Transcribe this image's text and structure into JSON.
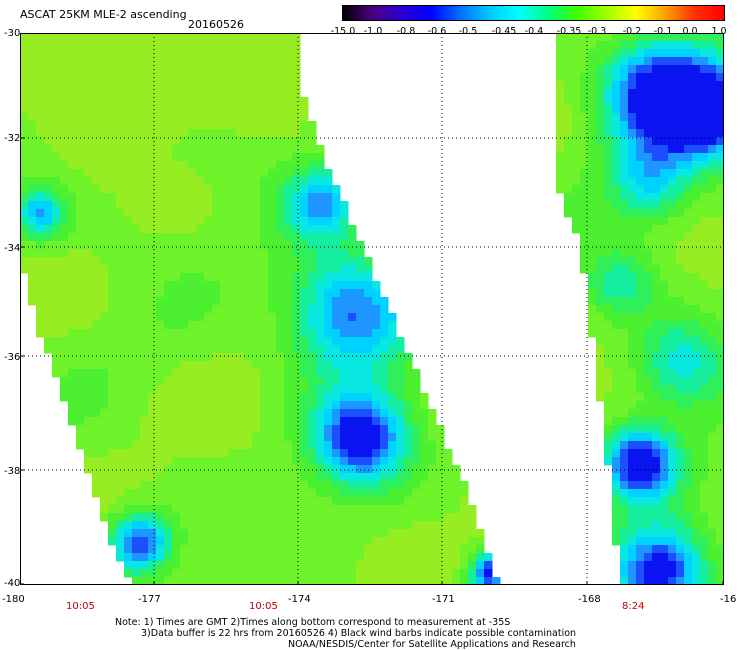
{
  "header": {
    "title": "ASCAT 25KM MLE-2 ascending",
    "date": "20160526"
  },
  "colorbar": {
    "labels": [
      "-15.0",
      "-1.0",
      "-0.8",
      "-0.6",
      "-0.5",
      "-0.45",
      "-0.4",
      "-0.35",
      "-0.3",
      "-0.2",
      "-0.1",
      "0.0",
      "1.0"
    ],
    "colors": [
      "#000000",
      "#4b0082",
      "#2a00d0",
      "#0000ff",
      "#0070ff",
      "#00c8ff",
      "#00ffff",
      "#00ff80",
      "#40ff00",
      "#a0ff00",
      "#ffff00",
      "#ffa000",
      "#ff3000",
      "#ff0000"
    ]
  },
  "axes": {
    "y_labels": [
      "-30",
      "-32",
      "-34",
      "-36",
      "-38",
      "-40"
    ],
    "x_labels": [
      "-180",
      "-177",
      "-174",
      "-171",
      "-168",
      "-16"
    ]
  },
  "times": [
    "10:05",
    "10:05",
    "8:24"
  ],
  "notes": {
    "line1": "Note: 1) Times are GMT 2)Times along bottom correspond to measurement at -35S",
    "line2": "3)Data buffer is 22 hrs from 20160526 4) Black wind barbs indicate possible contamination",
    "line3": "NOAA/NESDIS/Center for Satellite Applications and Research"
  }
}
